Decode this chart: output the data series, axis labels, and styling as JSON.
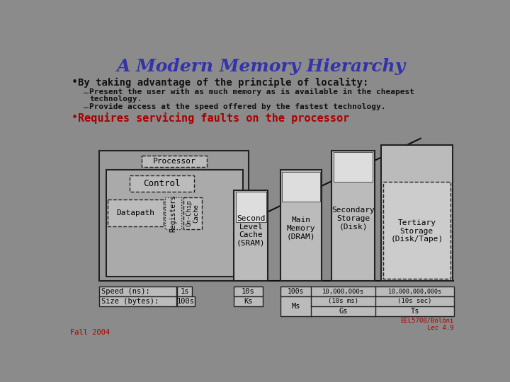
{
  "title": "A Modern Memory Hierarchy",
  "bg_color": "#8B8B8B",
  "title_color": "#3333AA",
  "bullet1_color": "#111111",
  "bullet2_color": "#AA0000",
  "sub_bullet_color": "#111111",
  "bullet1": "By taking advantage of the principle of locality:",
  "sub1": "Present the user with as much memory as is available in the cheapest\n     technology.",
  "sub2": "Provide access at the speed offered by the fastest technology.",
  "bullet2": "Requires servicing faults on the processor",
  "footer_left": "Fall 2004",
  "footer_right": "EEL5708/Bölöni\nLec 4.9",
  "footer_color": "#AA0000",
  "box_fill": "#AAAAAA",
  "box_inner_fill": "#C0C0C0",
  "box_edge": "#222222"
}
